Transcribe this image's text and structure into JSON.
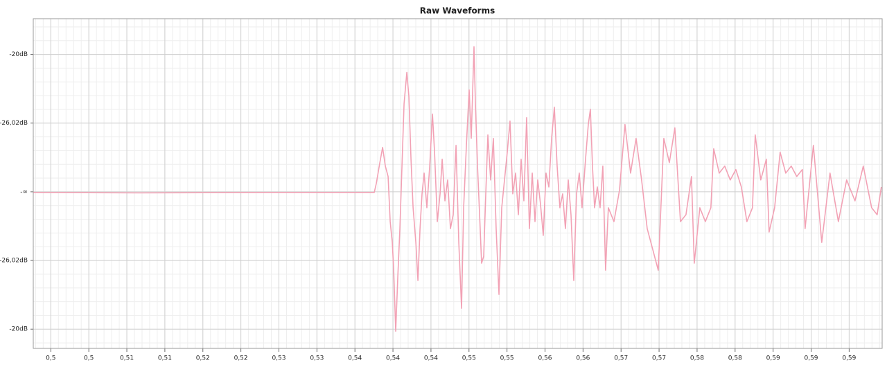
{
  "chart_data": {
    "type": "line",
    "title": "Raw Waveforms",
    "xlim": [
      0.4969,
      0.5985
    ],
    "ylim": [
      -0.114,
      0.126
    ],
    "grid": true,
    "xticks": [
      {
        "value": 0.499,
        "label": "0,5"
      },
      {
        "value": 0.50355,
        "label": "0,5"
      },
      {
        "value": 0.5081,
        "label": "0,51"
      },
      {
        "value": 0.51265,
        "label": "0,51"
      },
      {
        "value": 0.5172,
        "label": "0,52"
      },
      {
        "value": 0.52175,
        "label": "0,52"
      },
      {
        "value": 0.5263,
        "label": "0,53"
      },
      {
        "value": 0.53085,
        "label": "0,53"
      },
      {
        "value": 0.5354,
        "label": "0,54"
      },
      {
        "value": 0.53995,
        "label": "0,54"
      },
      {
        "value": 0.5445,
        "label": "0,54"
      },
      {
        "value": 0.54905,
        "label": "0,55"
      },
      {
        "value": 0.5536,
        "label": "0,55"
      },
      {
        "value": 0.55815,
        "label": "0,56"
      },
      {
        "value": 0.5627,
        "label": "0,56"
      },
      {
        "value": 0.56725,
        "label": "0,57"
      },
      {
        "value": 0.5718,
        "label": "0,57"
      },
      {
        "value": 0.57635,
        "label": "0,58"
      },
      {
        "value": 0.5809,
        "label": "0,58"
      },
      {
        "value": 0.58545,
        "label": "0,59"
      },
      {
        "value": 0.59,
        "label": "0,59"
      },
      {
        "value": 0.59455,
        "label": "0,59"
      }
    ],
    "yticks": [
      {
        "value": 0.1,
        "label": "-20dB"
      },
      {
        "value": 0.05,
        "label": "-26,02dB"
      },
      {
        "value": 0,
        "label": "-∞"
      },
      {
        "value": -0.05,
        "label": "-26,02dB"
      },
      {
        "value": -0.1,
        "label": "-20dB"
      }
    ],
    "x": [
      0.49693,
      0.50953,
      0.52611,
      0.53771,
      0.53796,
      0.53838,
      0.53871,
      0.53904,
      0.53937,
      0.53962,
      0.53987,
      0.54004,
      0.54028,
      0.54053,
      0.54078,
      0.54103,
      0.54128,
      0.54161,
      0.54186,
      0.54211,
      0.54236,
      0.54269,
      0.54294,
      0.54319,
      0.54343,
      0.54368,
      0.54401,
      0.54435,
      0.54468,
      0.54493,
      0.54526,
      0.54559,
      0.54584,
      0.54617,
      0.5465,
      0.54683,
      0.54716,
      0.5475,
      0.54783,
      0.54816,
      0.54841,
      0.54874,
      0.54907,
      0.54932,
      0.54965,
      0.54982,
      0.55007,
      0.55032,
      0.55056,
      0.55081,
      0.55106,
      0.55131,
      0.55164,
      0.55197,
      0.5523,
      0.55264,
      0.55297,
      0.5533,
      0.55363,
      0.55396,
      0.55429,
      0.55463,
      0.55496,
      0.55529,
      0.55562,
      0.55595,
      0.55628,
      0.55662,
      0.55695,
      0.55728,
      0.55761,
      0.55794,
      0.55827,
      0.55861,
      0.55894,
      0.55927,
      0.5596,
      0.55993,
      0.56026,
      0.56059,
      0.56093,
      0.56126,
      0.56159,
      0.56192,
      0.56225,
      0.56258,
      0.563,
      0.56333,
      0.56358,
      0.56383,
      0.56408,
      0.56441,
      0.56474,
      0.56507,
      0.5654,
      0.56573,
      0.5664,
      0.56706,
      0.56772,
      0.56839,
      0.56905,
      0.56971,
      0.57038,
      0.57104,
      0.5717,
      0.57237,
      0.57303,
      0.57369,
      0.57436,
      0.57502,
      0.57568,
      0.57601,
      0.57668,
      0.57734,
      0.578,
      0.57834,
      0.579,
      0.57966,
      0.58032,
      0.58099,
      0.58165,
      0.58231,
      0.58298,
      0.58331,
      0.58397,
      0.58464,
      0.58497,
      0.58563,
      0.58629,
      0.58696,
      0.58762,
      0.58828,
      0.58895,
      0.58928,
      0.59027,
      0.59127,
      0.59226,
      0.59326,
      0.59425,
      0.59525,
      0.59624,
      0.59724,
      0.5979,
      0.5984
    ],
    "series": [
      {
        "name": "waveform",
        "color": "#f2a2b5",
        "values": [
          -0.0005,
          -0.0008,
          -0.0005,
          -0.0005,
          0.0061,
          0.0212,
          0.0323,
          0.0187,
          0.0111,
          -0.0217,
          -0.0369,
          -0.0571,
          -0.1015,
          -0.0621,
          -0.0268,
          0.0187,
          0.0641,
          0.0869,
          0.0692,
          0.0237,
          -0.0116,
          -0.0369,
          -0.0646,
          -0.0268,
          -0.0015,
          0.0136,
          -0.0116,
          0.0187,
          0.0566,
          0.0288,
          -0.0217,
          -0.0015,
          0.0237,
          -0.0066,
          0.0086,
          -0.0268,
          -0.0167,
          0.0338,
          -0.0369,
          -0.0848,
          -0.0116,
          0.0338,
          0.0742,
          0.0389,
          0.1056,
          0.0641,
          0.0187,
          -0.0167,
          -0.052,
          -0.047,
          -0.0015,
          0.0414,
          0.0086,
          0.0389,
          -0.0268,
          -0.0747,
          -0.0116,
          0.0086,
          0.0288,
          0.0515,
          -0.0015,
          0.0136,
          -0.0167,
          0.0237,
          -0.0066,
          0.054,
          -0.0268,
          0.0136,
          -0.0217,
          0.0086,
          -0.0091,
          -0.0318,
          0.0136,
          0.0035,
          0.0389,
          0.0616,
          0.0187,
          -0.0116,
          -0.0015,
          -0.0268,
          0.0086,
          -0.0167,
          -0.0646,
          -0.0015,
          0.0136,
          -0.0116,
          0.0237,
          0.049,
          0.0601,
          0.0187,
          -0.0116,
          0.0035,
          -0.0116,
          0.0187,
          -0.0571,
          -0.0116,
          -0.0217,
          0.001,
          0.049,
          0.0136,
          0.0389,
          0.0086,
          -0.0268,
          -0.0419,
          -0.0571,
          0.0389,
          0.0212,
          0.0465,
          -0.0217,
          -0.0167,
          0.0111,
          -0.052,
          -0.0116,
          -0.0217,
          -0.0116,
          0.0313,
          0.0136,
          0.0187,
          0.0086,
          0.0162,
          0.0035,
          -0.0217,
          -0.0116,
          0.0414,
          0.0086,
          0.0237,
          -0.0293,
          -0.0116,
          0.0288,
          0.0136,
          0.0187,
          0.0111,
          0.0162,
          -0.0268,
          0.0338,
          -0.0369,
          0.0136,
          -0.0217,
          0.0086,
          -0.0066,
          0.0187,
          -0.0116,
          -0.0167,
          0.0035
        ]
      }
    ]
  }
}
